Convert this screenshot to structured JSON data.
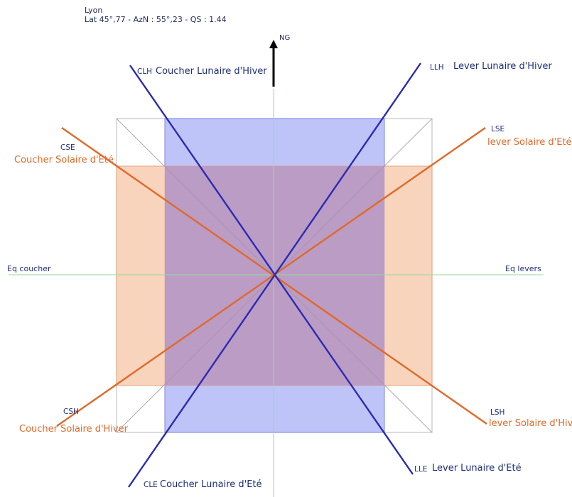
{
  "header": {
    "city": "Lyon",
    "coords": "Lat 45°,77 - AzN : 55°,23 - QS : 1.44"
  },
  "north_label": "NG",
  "axes": {
    "west": "Eq coucher",
    "east": "Eq levers"
  },
  "lunar_lines": [
    {
      "abbr": "CLH",
      "name": "Coucher Lunaire d'Hiver"
    },
    {
      "abbr": "LLH",
      "name": "Lever Lunaire d'Hiver"
    },
    {
      "abbr": "CLE",
      "name": "Coucher Lunaire d'Eté"
    },
    {
      "abbr": "LLE",
      "name": "Lever Lunaire d'Eté"
    }
  ],
  "solar_lines": [
    {
      "abbr": "CSE",
      "name": "Coucher Solaire d'Eté"
    },
    {
      "abbr": "LSE",
      "name": "lever Solaire d'Eté"
    },
    {
      "abbr": "CSH",
      "name": "Coucher Solaire d'Hiver"
    },
    {
      "abbr": "LSH",
      "name": "lever Solaire d'Hiver"
    }
  ],
  "colors": {
    "lunar_line": "#2b2bb3",
    "solar_line": "#e0692a",
    "lunar_fill": "#aab0f5",
    "solar_fill": "#f6c6a6",
    "overlap_fill": "#b89ac4",
    "axis": "#9ad79a"
  }
}
